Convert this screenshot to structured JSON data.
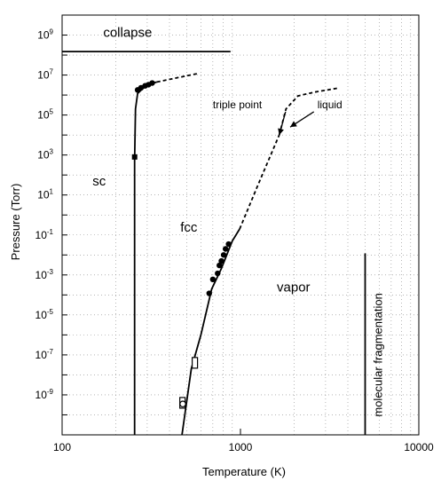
{
  "chart_data": {
    "type": "line",
    "xlabel": "Temperature (K)",
    "ylabel": "Pressure (Torr)",
    "x_scale": "log",
    "y_scale": "log",
    "xlim": [
      100,
      10000
    ],
    "ylim": [
      1e-11,
      10000000000.0
    ],
    "grid": true,
    "x_ticks": [
      {
        "value": 100,
        "label": "100"
      },
      {
        "value": 1000,
        "label": "1000"
      },
      {
        "value": 10000,
        "label": "10000"
      }
    ],
    "y_ticks": [
      {
        "value": 1000000000.0,
        "base": "10",
        "exp": "9"
      },
      {
        "value": 10000000.0,
        "base": "10",
        "exp": "7"
      },
      {
        "value": 100000.0,
        "base": "10",
        "exp": "5"
      },
      {
        "value": 1000.0,
        "base": "10",
        "exp": "3"
      },
      {
        "value": 10.0,
        "base": "10",
        "exp": "1"
      },
      {
        "value": 0.1,
        "base": "10",
        "exp": "-1"
      },
      {
        "value": 0.001,
        "base": "10",
        "exp": "-3"
      },
      {
        "value": 1e-05,
        "base": "10",
        "exp": "-5"
      },
      {
        "value": 1e-07,
        "base": "10",
        "exp": "-7"
      },
      {
        "value": 1e-09,
        "base": "10",
        "exp": "-9"
      }
    ],
    "curves": [
      {
        "id": "collapse-line",
        "style": "solid",
        "points": [
          [
            100,
            150000000.0
          ],
          [
            880,
            150000000.0
          ]
        ]
      },
      {
        "id": "sc-fcc-boundary",
        "style": "solid",
        "points": [
          [
            255,
            1e-11
          ],
          [
            255,
            500.0
          ],
          [
            258,
            200000.0
          ],
          [
            265,
            1200000.0
          ],
          [
            285,
            2200000.0
          ],
          [
            310,
            3500000.0
          ],
          [
            340,
            4500000.0
          ]
        ]
      },
      {
        "id": "sc-fcc-extension",
        "style": "dashed",
        "points": [
          [
            340,
            4500000.0
          ],
          [
            430,
            7000000.0
          ],
          [
            580,
            12000000.0
          ]
        ]
      },
      {
        "id": "sublimation-curve",
        "style": "solid",
        "points": [
          [
            470,
            1e-11
          ],
          [
            530,
            2e-08
          ],
          [
            600,
            1e-06
          ],
          [
            690,
            0.0002
          ],
          [
            780,
            0.002
          ],
          [
            900,
            0.05
          ],
          [
            990,
            0.2
          ]
        ]
      },
      {
        "id": "sublimation-extension",
        "style": "dashed",
        "points": [
          [
            990,
            0.2
          ],
          [
            1250,
            30.0
          ],
          [
            1650,
            10000.0
          ]
        ]
      },
      {
        "id": "liquid-vapor-curve",
        "style": "dashed",
        "points": [
          [
            1650,
            10000.0
          ],
          [
            1800,
            200000.0
          ],
          [
            2100,
            900000.0
          ],
          [
            2600,
            1400000.0
          ],
          [
            3500,
            2200000.0
          ]
        ]
      },
      {
        "id": "molecular-fragmentation-line",
        "style": "solid",
        "points": [
          [
            5000,
            1e-11
          ],
          [
            5000,
            0.012
          ]
        ]
      }
    ],
    "points": [
      {
        "x": 255,
        "y": 800.0,
        "marker": "filled-square"
      },
      {
        "x": 265,
        "y": 1800000.0,
        "marker": "filled-circle"
      },
      {
        "x": 277,
        "y": 2300000.0,
        "marker": "filled-circle"
      },
      {
        "x": 292,
        "y": 2900000.0,
        "marker": "filled-circle"
      },
      {
        "x": 305,
        "y": 3300000.0,
        "marker": "filled-circle"
      },
      {
        "x": 320,
        "y": 4000000.0,
        "marker": "filled-circle"
      },
      {
        "x": 473,
        "y": 4e-10,
        "marker": "open-square"
      },
      {
        "x": 475,
        "y": 3.5e-10,
        "marker": "open-circle"
      },
      {
        "x": 555,
        "y": 4e-08,
        "marker": "open-square"
      },
      {
        "x": 668,
        "y": 0.00012,
        "marker": "filled-circle"
      },
      {
        "x": 700,
        "y": 0.0006,
        "marker": "filled-circle"
      },
      {
        "x": 745,
        "y": 0.0012,
        "marker": "filled-circle"
      },
      {
        "x": 762,
        "y": 0.003,
        "marker": "filled-circle"
      },
      {
        "x": 782,
        "y": 0.005,
        "marker": "filled-circle"
      },
      {
        "x": 805,
        "y": 0.01,
        "marker": "filled-circle"
      },
      {
        "x": 825,
        "y": 0.02,
        "marker": "filled-circle"
      },
      {
        "x": 858,
        "y": 0.035,
        "marker": "filled-circle"
      }
    ],
    "region_labels": [
      {
        "text": "collapse",
        "x": 170,
        "y": 800000000.0
      },
      {
        "text": "sc",
        "x": 148,
        "y": 30.0
      },
      {
        "text": "fcc",
        "x": 460,
        "y": 0.15
      },
      {
        "text": "vapor",
        "x": 1600,
        "y": 0.00015
      },
      {
        "text": "molecular fragmentation",
        "x": 6200,
        "y": 1e-07,
        "rotated": true
      }
    ],
    "annotations": [
      {
        "text": "triple point",
        "x": 700,
        "y": 220000.0,
        "arrow_to": [
          1650,
          10000.0
        ]
      },
      {
        "text": "liquid",
        "x": 2700,
        "y": 220000.0,
        "arrow_to": [
          1900,
          25000.0
        ]
      }
    ]
  }
}
